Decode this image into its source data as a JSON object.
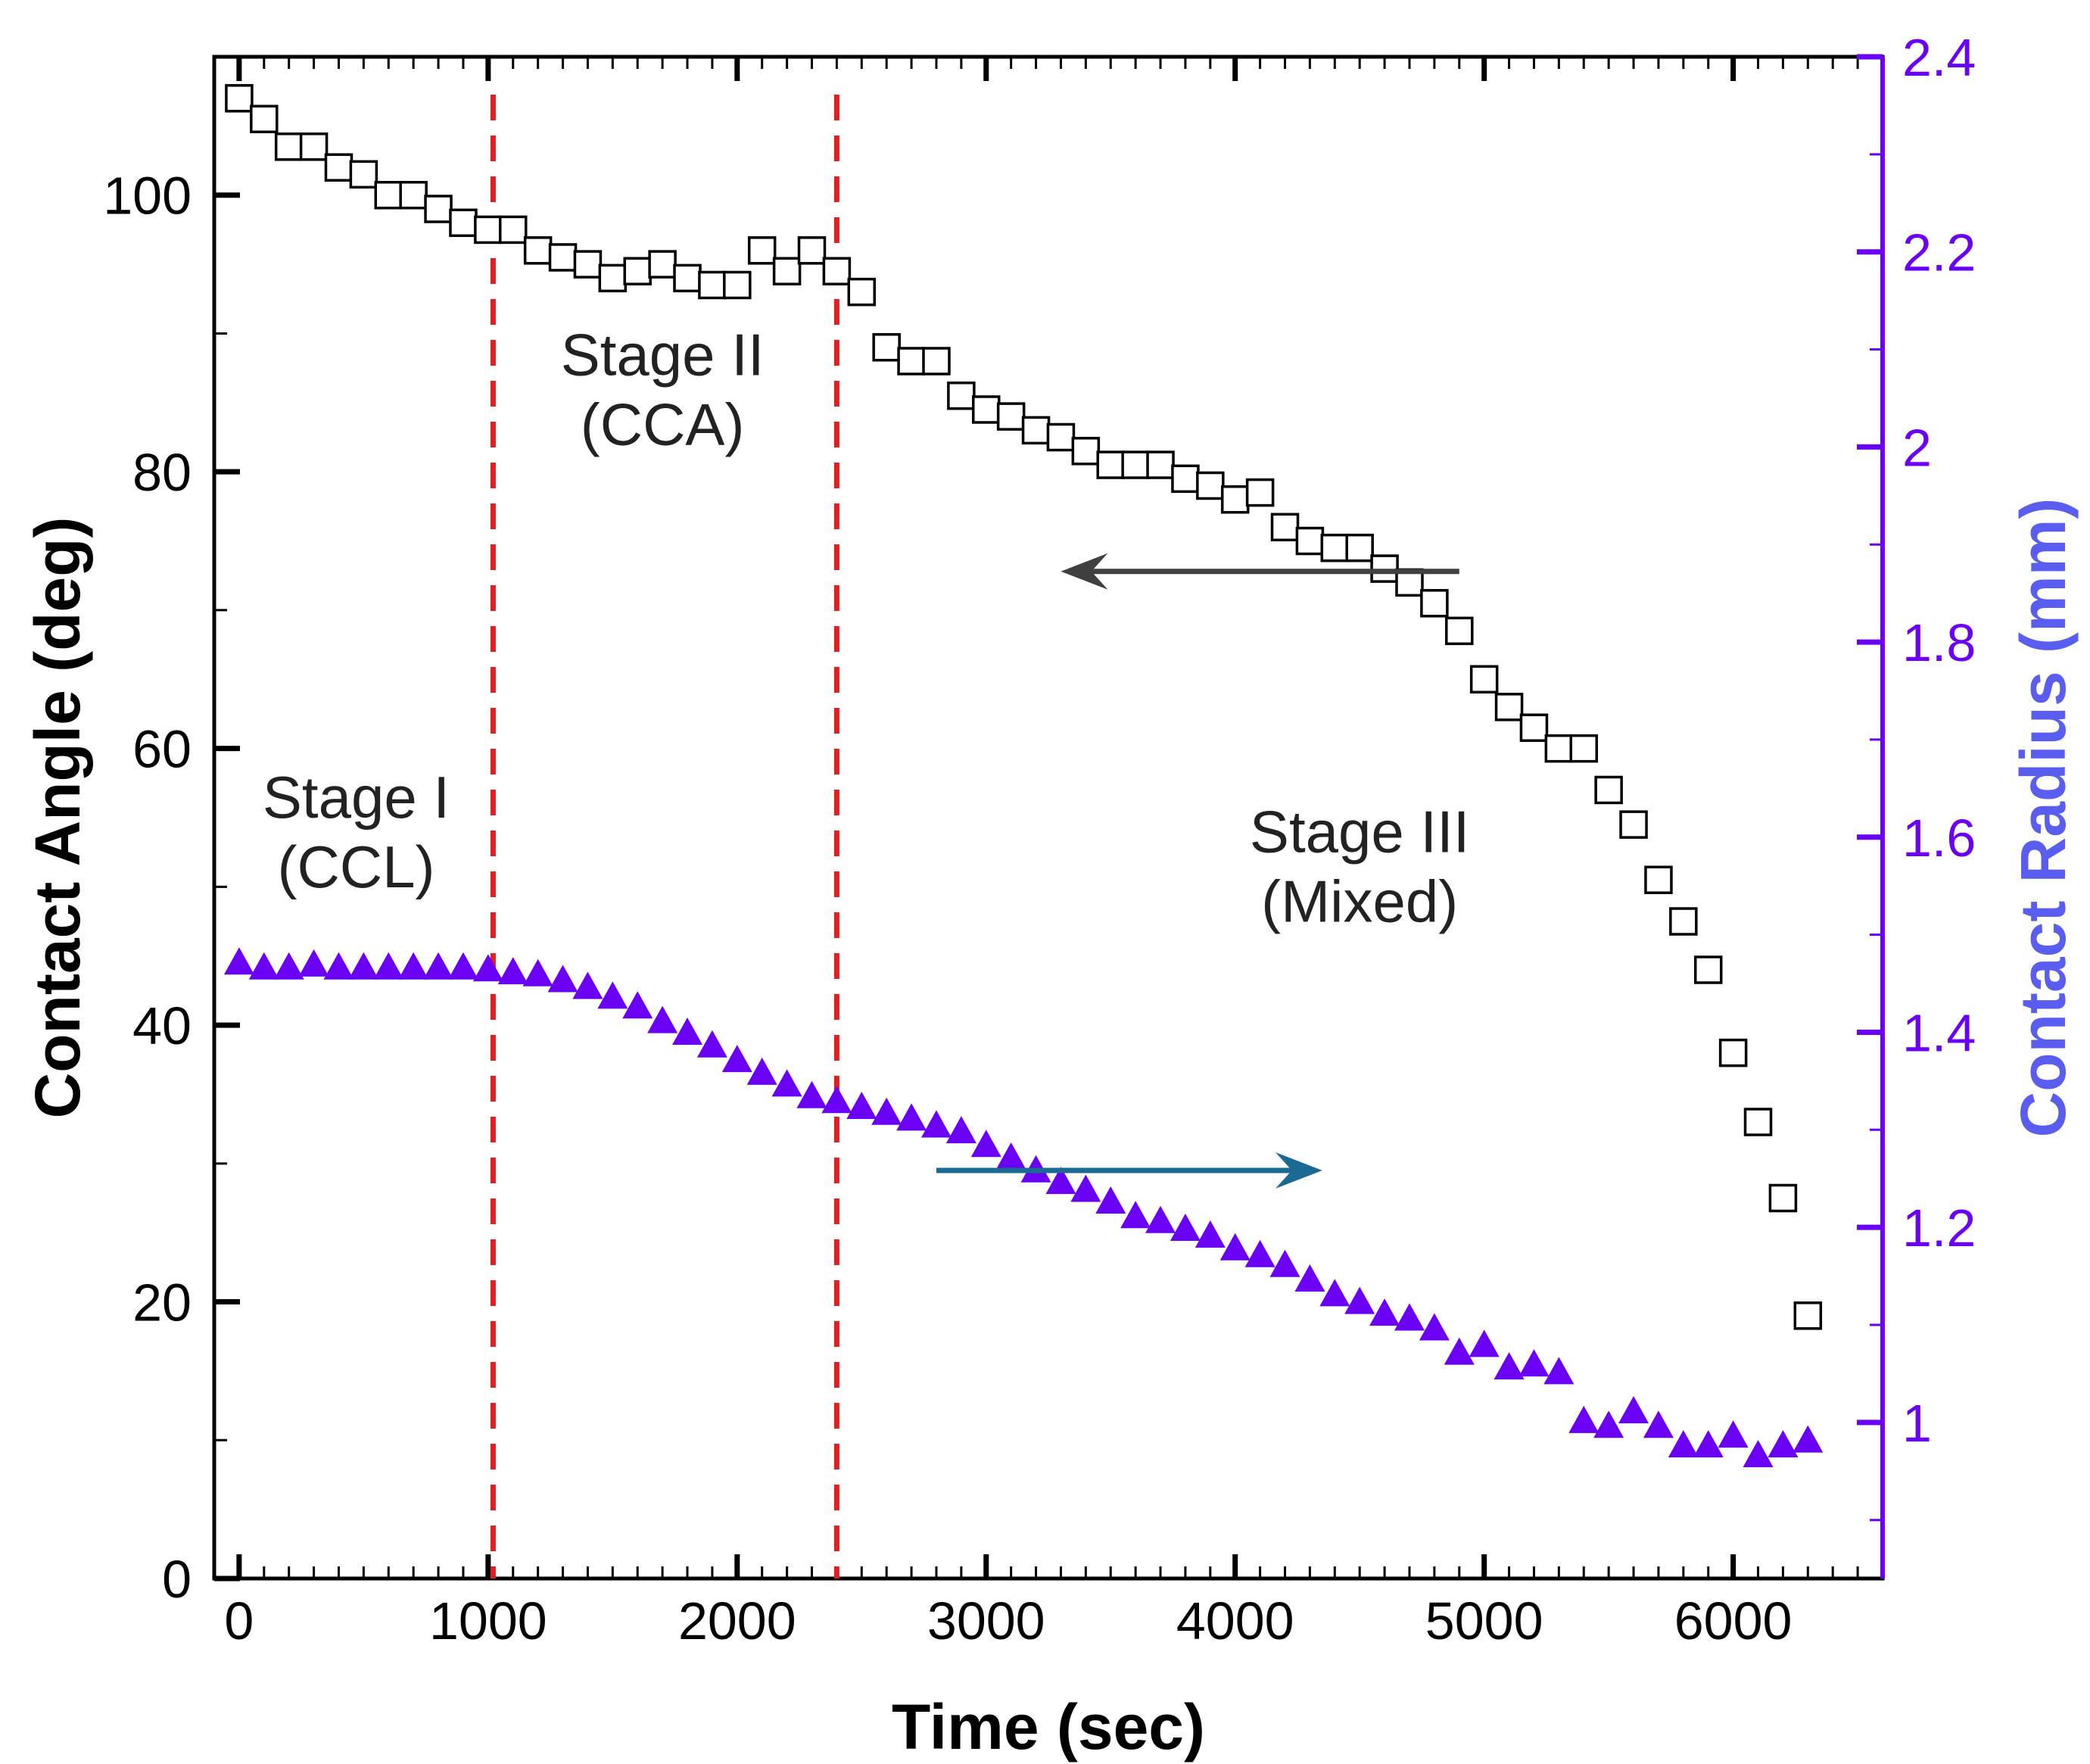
{
  "chart_data": {
    "type": "scatter",
    "title": "",
    "xlabel": "Time (sec)",
    "ylabel": "Contact Angle (deg)",
    "ylabel_right": "Contact Radius (mm)",
    "xlim": [
      -100,
      6600
    ],
    "ylim": [
      0,
      110
    ],
    "ylim_right": [
      0.84,
      2.4
    ],
    "x_ticks": [
      0,
      1000,
      2000,
      3000,
      4000,
      5000,
      6000
    ],
    "y_ticks": [
      0,
      20,
      40,
      60,
      80,
      100
    ],
    "y_ticks_right": [
      1,
      1.2,
      1.4,
      1.6,
      1.8,
      2,
      2.2,
      2.4
    ],
    "y_ticks_right_labels": [
      "1",
      "1.2",
      "1.4",
      "1.6",
      "1.8",
      "2",
      "2.2",
      "2.4"
    ],
    "series": [
      {
        "name": "Contact Angle",
        "axis": "left",
        "marker": "open-square",
        "color": "#000000",
        "x": [
          0,
          100,
          200,
          300,
          400,
          500,
          600,
          700,
          800,
          900,
          1000,
          1100,
          1200,
          1300,
          1400,
          1500,
          1600,
          1700,
          1800,
          1900,
          2000,
          2100,
          2200,
          2300,
          2400,
          2500,
          2600,
          2700,
          2800,
          2900,
          3000,
          3100,
          3200,
          3300,
          3400,
          3500,
          3600,
          3700,
          3800,
          3900,
          4000,
          4100,
          4200,
          4300,
          4400,
          4500,
          4600,
          4700,
          4800,
          4900,
          5000,
          5100,
          5200,
          5300,
          5400,
          5500,
          5600,
          5700,
          5800,
          5900,
          6000,
          6100,
          6200,
          6300
        ],
        "values": [
          107,
          105.5,
          103.5,
          103.5,
          102,
          101.5,
          100,
          100,
          99,
          98,
          97.5,
          97.5,
          96,
          95.5,
          95,
          94,
          94.5,
          95,
          94,
          93.5,
          93.5,
          96,
          94.5,
          96,
          94.5,
          93,
          89,
          88,
          88,
          85.5,
          84.5,
          84,
          83,
          82.5,
          81.5,
          80.5,
          80.5,
          80.5,
          79.5,
          79,
          78,
          78.5,
          76,
          75,
          74.5,
          74.5,
          73,
          72,
          70.5,
          68.5,
          65,
          63,
          61.5,
          60,
          60,
          57,
          54.5,
          50.5,
          47.5,
          44,
          38,
          33,
          27.5,
          19
        ]
      },
      {
        "name": "Contact Radius",
        "axis": "right",
        "marker": "filled-triangle",
        "color": "#6a00f4",
        "x": [
          0,
          100,
          200,
          300,
          400,
          500,
          600,
          700,
          800,
          900,
          1000,
          1100,
          1200,
          1300,
          1400,
          1500,
          1600,
          1700,
          1800,
          1900,
          2000,
          2100,
          2200,
          2300,
          2400,
          2500,
          2600,
          2700,
          2800,
          2900,
          3000,
          3100,
          3200,
          3300,
          3400,
          3500,
          3600,
          3700,
          3800,
          3900,
          4000,
          4100,
          4200,
          4300,
          4400,
          4500,
          4600,
          4700,
          4800,
          4900,
          5000,
          5100,
          5200,
          5300,
          5400,
          5500,
          5600,
          5700,
          5800,
          5900,
          6000,
          6100,
          6200,
          6300
        ],
        "values": [
          1.47,
          1.465,
          1.465,
          1.468,
          1.465,
          1.465,
          1.465,
          1.465,
          1.465,
          1.465,
          1.463,
          1.46,
          1.458,
          1.452,
          1.445,
          1.435,
          1.425,
          1.41,
          1.398,
          1.385,
          1.37,
          1.357,
          1.345,
          1.333,
          1.328,
          1.322,
          1.316,
          1.31,
          1.303,
          1.297,
          1.283,
          1.27,
          1.257,
          1.245,
          1.237,
          1.225,
          1.21,
          1.205,
          1.197,
          1.19,
          1.177,
          1.17,
          1.16,
          1.145,
          1.13,
          1.122,
          1.11,
          1.105,
          1.095,
          1.07,
          1.078,
          1.055,
          1.058,
          1.05,
          1.0,
          0.995,
          1.01,
          0.995,
          0.975,
          0.975,
          0.985,
          0.965,
          0.975,
          0.98
        ]
      }
    ],
    "vertical_lines": [
      {
        "x": 1020,
        "style": "dashed",
        "color": "#e02020"
      },
      {
        "x": 2400,
        "style": "dashed",
        "color": "#e02020"
      }
    ],
    "arrows": [
      {
        "name": "contact-angle-axis-arrow",
        "from": [
          4900,
          72.8
        ],
        "to": [
          3300,
          72.8
        ],
        "color": "#404040",
        "axis": "left"
      },
      {
        "name": "contact-radius-axis-arrow",
        "from": [
          2800,
          29.5
        ],
        "to": [
          4350,
          29.5
        ],
        "color": "#1a6a94",
        "axis": "left"
      }
    ],
    "annotations": [
      {
        "name": "stage-1",
        "lines": [
          "Stage I",
          "(CCL)"
        ],
        "x": 470,
        "y": 55
      },
      {
        "name": "stage-2",
        "lines": [
          "Stage II",
          "(CCA)"
        ],
        "x": 1700,
        "y": 87
      },
      {
        "name": "stage-3",
        "lines": [
          "Stage III",
          "(Mixed)"
        ],
        "x": 4500,
        "y": 52.5
      }
    ],
    "grid": false,
    "legend": "none",
    "colors": {
      "left_axis": "#000000",
      "right_axis": "#6a00f4",
      "right_axis_title": "#5a5ef0",
      "dashed_lines": "#e02020"
    }
  }
}
